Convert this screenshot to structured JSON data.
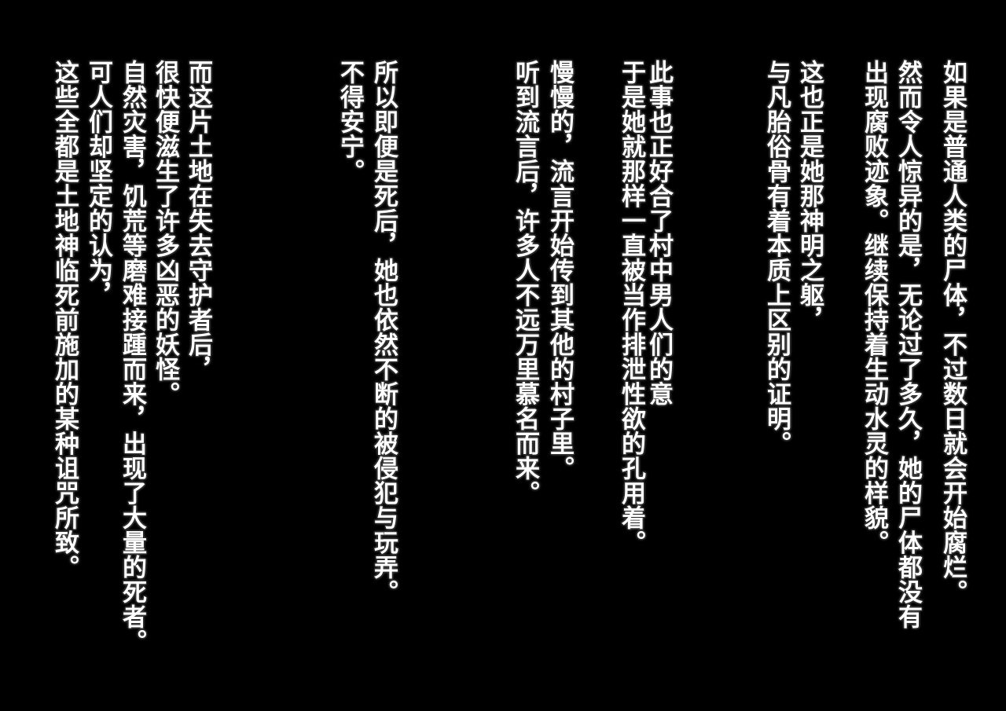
{
  "background_color": "#000000",
  "text_color": "#ffffff",
  "paragraphs": [
    {
      "lines": [
        "如果是普通人类的尸体，不过数日就会开始腐烂。",
        "然而令人惊异的是，无论过了多久，她的尸体都没有",
        "出现腐败迹象。继续保持着生动水灵的样貌。"
      ]
    },
    {
      "lines": [
        "这也正是她那神明之躯，",
        "与凡胎俗骨有着本质上区别的证明。"
      ]
    },
    {
      "lines": [
        "此事也正好合了村中男人们的意",
        "于是她就那样一直被当作排泄性欲的孔用着。"
      ]
    },
    {
      "lines": [
        "慢慢的，流言开始传到其他的村子里。",
        "听到流言后，许多人不远万里慕名而来。"
      ]
    },
    {
      "lines": [
        "所以即便是死后，她也依然不断的被侵犯与玩弄。",
        "不得安宁。"
      ]
    },
    {
      "lines": [
        "而这片土地在失去守护者后，",
        "很快便滋生了许多凶恶的妖怪。",
        "自然灾害，饥荒等磨难接踵而来，出现了大量的死者。",
        "可人们却坚定的认为，",
        "这些全都是土地神临死前施加的某种诅咒所致。"
      ]
    }
  ]
}
